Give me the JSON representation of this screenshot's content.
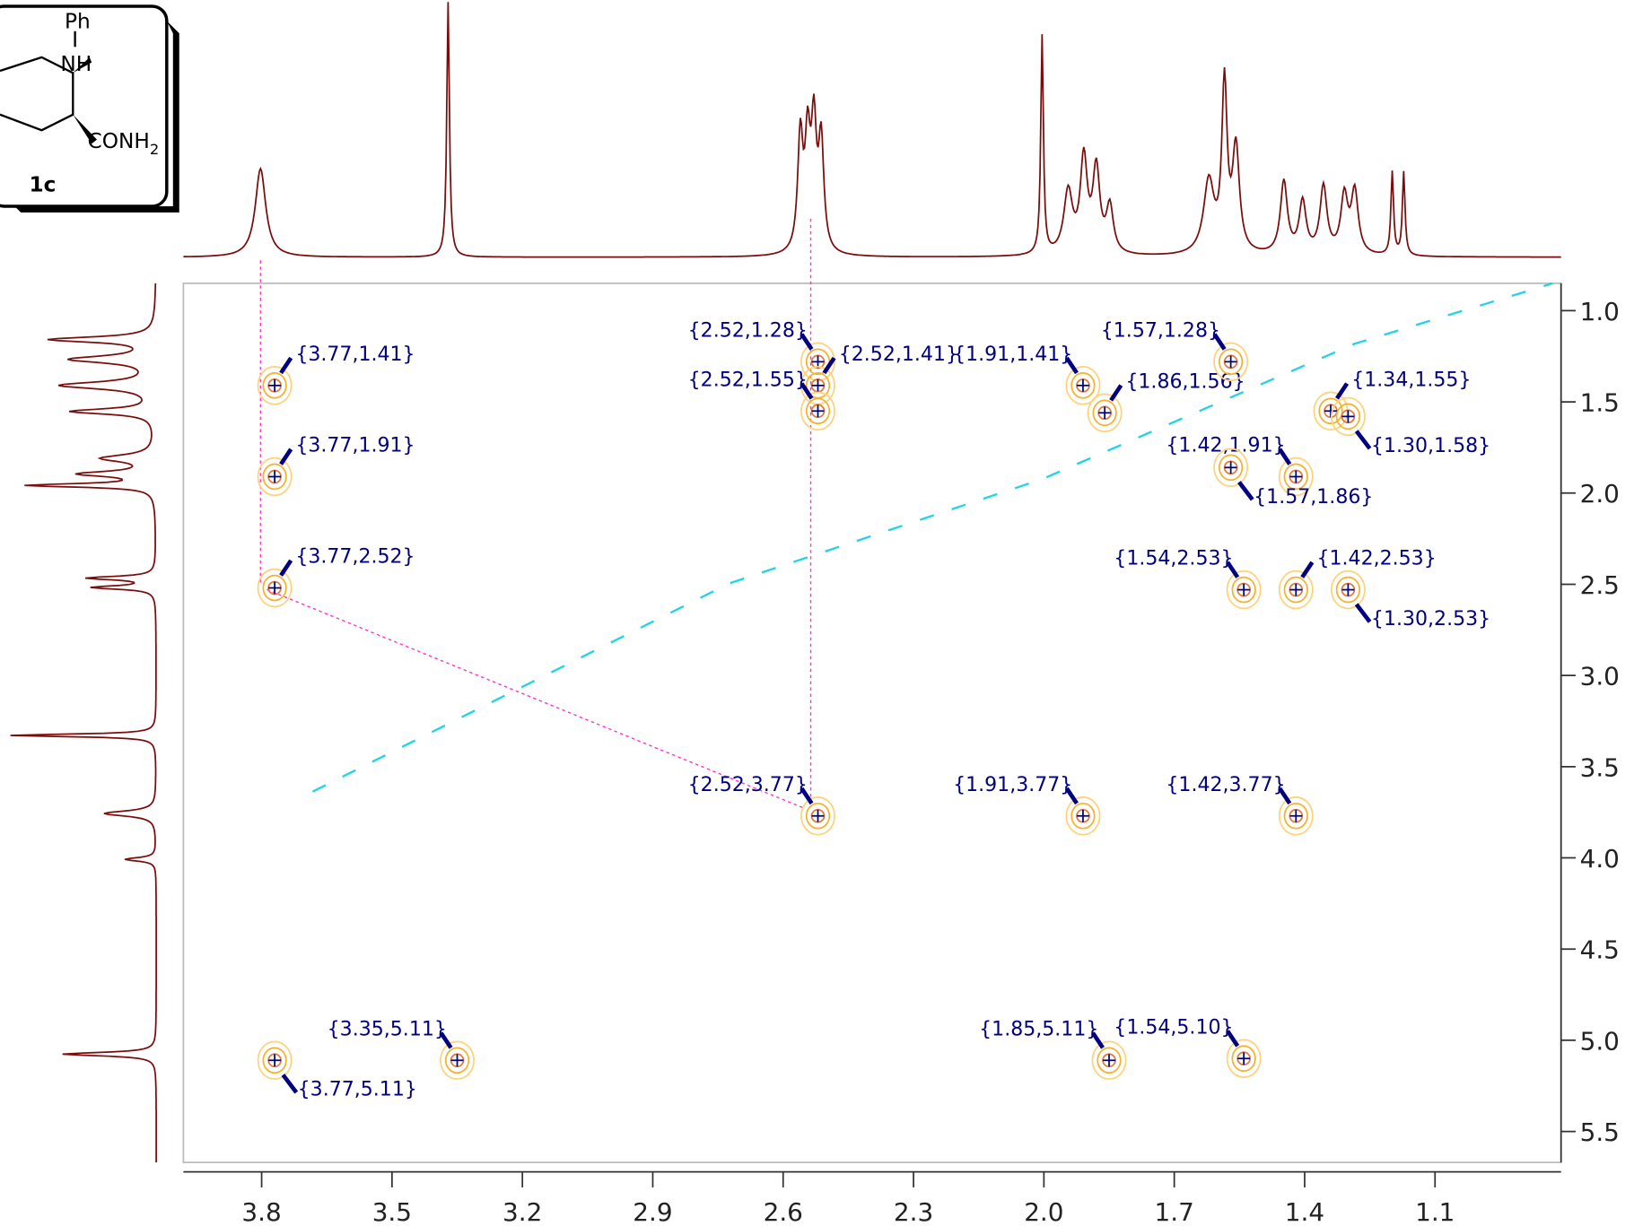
{
  "chart_data": {
    "type": "scatter",
    "structure": {
      "labels": [
        "Ph",
        "NH",
        "CONH",
        "2",
        "1c"
      ]
    },
    "xlim": [
      3.98,
      0.81
    ],
    "ylim": [
      0.85,
      5.67
    ],
    "xticks": [
      3.8,
      3.5,
      3.2,
      2.9,
      2.6,
      2.3,
      {
        "value": 2.0,
        "label": "2.0"
      },
      1.7,
      1.4,
      1.1
    ],
    "yticks": [
      {
        "value": 1.0,
        "label": "1.0"
      },
      1.5,
      {
        "value": 2.0,
        "label": "2.0"
      },
      2.5,
      {
        "value": 3.0,
        "label": "3.0"
      },
      3.5,
      {
        "value": 4.0,
        "label": "4.0"
      },
      4.5,
      {
        "value": 5.0,
        "label": "5.0"
      },
      5.5
    ],
    "color": "#000080",
    "points": [
      {
        "x": 3.77,
        "y": 1.41,
        "label": "{3.77,1.41}"
      },
      {
        "x": 3.77,
        "y": 1.91,
        "label": "{3.77,1.91}"
      },
      {
        "x": 3.77,
        "y": 2.52,
        "label": "{3.77,2.52}"
      },
      {
        "x": 3.77,
        "y": 5.11,
        "label": "{3.77,5.11}"
      },
      {
        "x": 3.35,
        "y": 5.11,
        "label": "{3.35,5.11}"
      },
      {
        "x": 2.52,
        "y": 1.28,
        "label": "{2.52,1.28}"
      },
      {
        "x": 2.52,
        "y": 1.41,
        "label": "{2.52,1.41}"
      },
      {
        "x": 2.52,
        "y": 1.55,
        "label": "{2.52,1.55}"
      },
      {
        "x": 2.52,
        "y": 3.77,
        "label": "{2.52,3.77}"
      },
      {
        "x": 1.91,
        "y": 1.41,
        "label": "{1.91,1.41}"
      },
      {
        "x": 1.86,
        "y": 1.56,
        "label": "{1.86,1.56}"
      },
      {
        "x": 1.57,
        "y": 1.28,
        "label": "{1.57,1.28}"
      },
      {
        "x": 1.34,
        "y": 1.55,
        "label": "{1.34,1.55}"
      },
      {
        "x": 1.3,
        "y": 1.58,
        "label": "{1.30,1.58}"
      },
      {
        "x": 1.42,
        "y": 1.91,
        "label": "{1.42,1.91}"
      },
      {
        "x": 1.57,
        "y": 1.86,
        "label": "{1.57,1.86}"
      },
      {
        "x": 1.91,
        "y": 3.77,
        "label": "{1.91,3.77}"
      },
      {
        "x": 1.42,
        "y": 3.77,
        "label": "{1.42,3.77}"
      },
      {
        "x": 1.54,
        "y": 2.53,
        "label": "{1.54,2.53}"
      },
      {
        "x": 1.42,
        "y": 2.53,
        "label": "{1.42,2.53}"
      },
      {
        "x": 1.3,
        "y": 2.53,
        "label": "{1.30,2.53}"
      },
      {
        "x": 1.85,
        "y": 5.11,
        "label": "{1.85,5.11}"
      },
      {
        "x": 1.54,
        "y": 5.1,
        "label": "{1.54,5.10}"
      }
    ]
  }
}
